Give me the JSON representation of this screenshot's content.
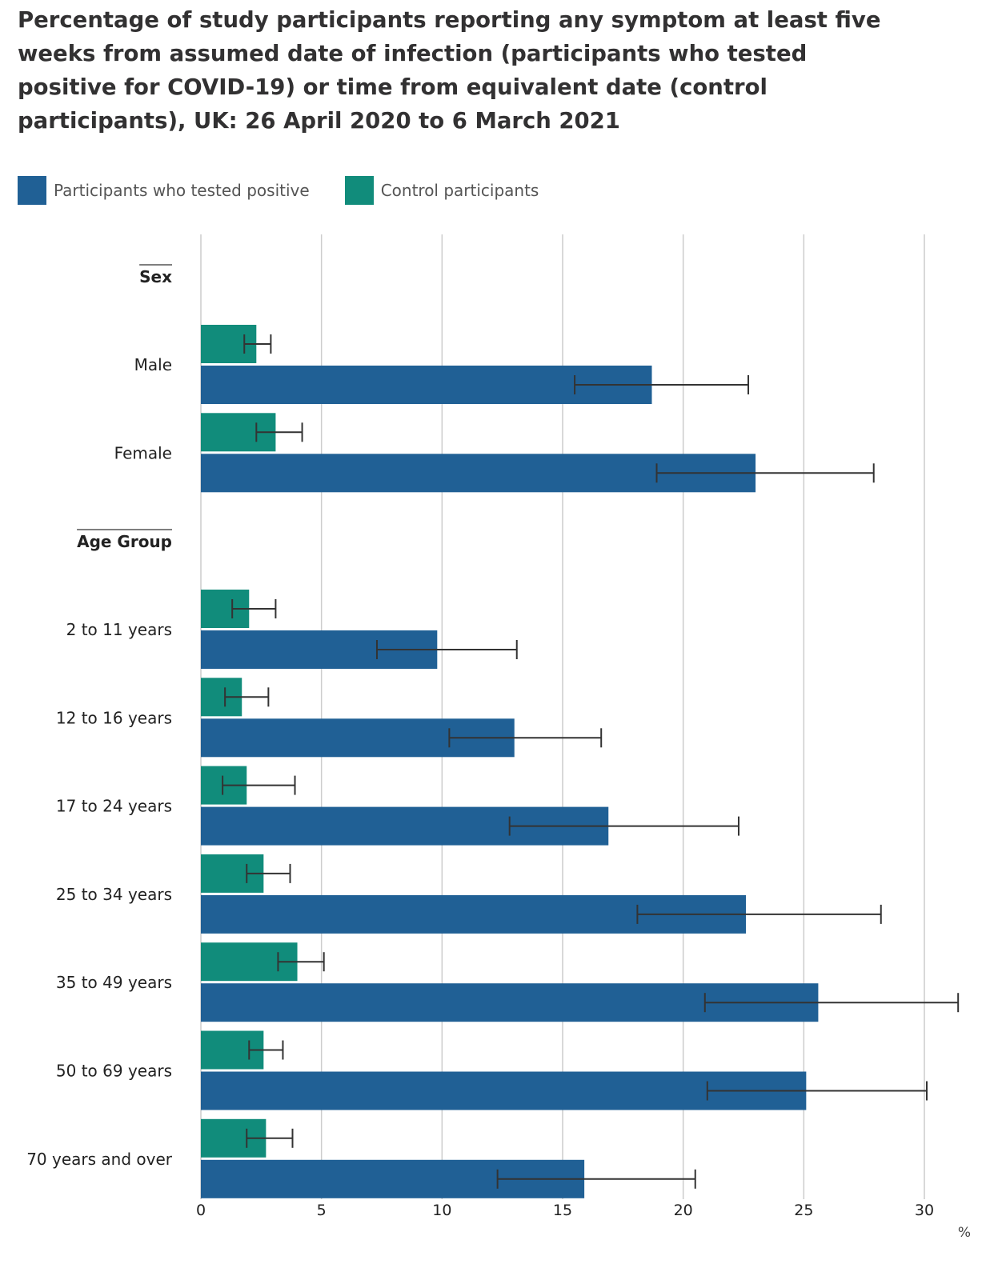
{
  "title": "Percentage of study participants reporting any symptom at least five weeks from assumed date of infection (participants who tested positive for COVID-19) or time from equivalent date (control participants), UK: 26 April 2020 to 6 March 2021",
  "colors": {
    "positive": "#206095",
    "control": "#118c7b",
    "grid": "#cccccc",
    "error": "#333333"
  },
  "chart_data": {
    "type": "bar",
    "orientation": "horizontal",
    "title": "Percentage of study participants reporting any symptom at least five weeks from assumed date of infection (participants who tested positive for COVID-19) or time from equivalent date (control participants), UK: 26 April 2020 to 6 March 2021",
    "xlabel": "%",
    "xlim": [
      0,
      30
    ],
    "xticks": [
      0,
      5,
      10,
      15,
      20,
      25,
      30
    ],
    "grid": true,
    "legend_position": "top-left",
    "series": [
      {
        "key": "positive",
        "name": "Participants who tested positive"
      },
      {
        "key": "control",
        "name": "Control participants"
      }
    ],
    "groups": [
      {
        "name": "Sex",
        "categories": [
          {
            "label": "Male",
            "control": {
              "value": 2.3,
              "lower": 1.8,
              "upper": 2.9
            },
            "positive": {
              "value": 18.7,
              "lower": 15.5,
              "upper": 22.7
            }
          },
          {
            "label": "Female",
            "control": {
              "value": 3.1,
              "lower": 2.3,
              "upper": 4.2
            },
            "positive": {
              "value": 23.0,
              "lower": 18.9,
              "upper": 27.9
            }
          }
        ]
      },
      {
        "name": "Age Group",
        "categories": [
          {
            "label": "2 to 11 years",
            "control": {
              "value": 2.0,
              "lower": 1.3,
              "upper": 3.1
            },
            "positive": {
              "value": 9.8,
              "lower": 7.3,
              "upper": 13.1
            }
          },
          {
            "label": "12 to 16 years",
            "control": {
              "value": 1.7,
              "lower": 1.0,
              "upper": 2.8
            },
            "positive": {
              "value": 13.0,
              "lower": 10.3,
              "upper": 16.6
            }
          },
          {
            "label": "17 to 24 years",
            "control": {
              "value": 1.9,
              "lower": 0.9,
              "upper": 3.9
            },
            "positive": {
              "value": 16.9,
              "lower": 12.8,
              "upper": 22.3
            }
          },
          {
            "label": "25 to 34 years",
            "control": {
              "value": 2.6,
              "lower": 1.9,
              "upper": 3.7
            },
            "positive": {
              "value": 22.6,
              "lower": 18.1,
              "upper": 28.2
            }
          },
          {
            "label": "35 to 49 years",
            "control": {
              "value": 4.0,
              "lower": 3.2,
              "upper": 5.1
            },
            "positive": {
              "value": 25.6,
              "lower": 20.9,
              "upper": 31.4
            }
          },
          {
            "label": "50 to 69 years",
            "control": {
              "value": 2.6,
              "lower": 2.0,
              "upper": 3.4
            },
            "positive": {
              "value": 25.1,
              "lower": 21.0,
              "upper": 30.1
            }
          },
          {
            "label": "70 years and over",
            "control": {
              "value": 2.7,
              "lower": 1.9,
              "upper": 3.8
            },
            "positive": {
              "value": 15.9,
              "lower": 12.3,
              "upper": 20.5
            }
          }
        ]
      }
    ]
  }
}
